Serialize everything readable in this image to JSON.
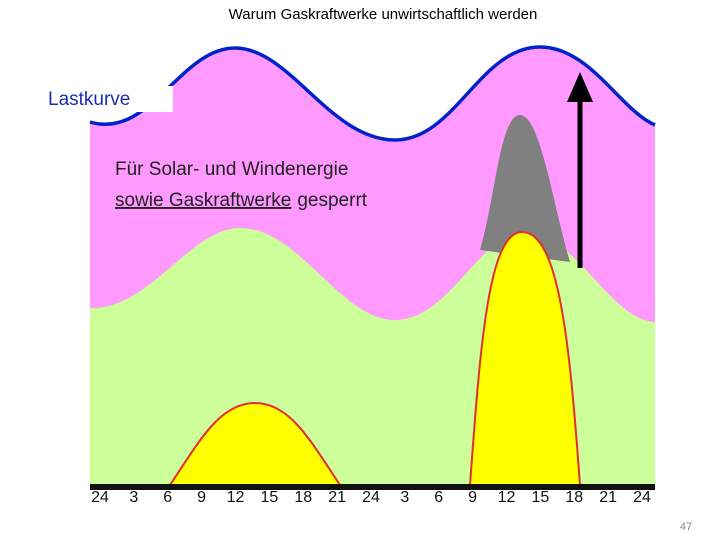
{
  "title": "Warum Gaskraftwerke unwirtschaftlich werden",
  "labels": {
    "load_curve": "Lastkurve",
    "note_line1": "Für Solar- und Windenergie",
    "note_line2_underlined": "sowie Gaskraftwerke",
    "note_line2_rest": "gesperrt"
  },
  "x_axis": {
    "ticks": [
      "24",
      "3",
      "6",
      "9",
      "12",
      "15",
      "18",
      "21",
      "24",
      "3",
      "6",
      "9",
      "12",
      "15",
      "18",
      "21",
      "24"
    ]
  },
  "page_number": "47"
}
